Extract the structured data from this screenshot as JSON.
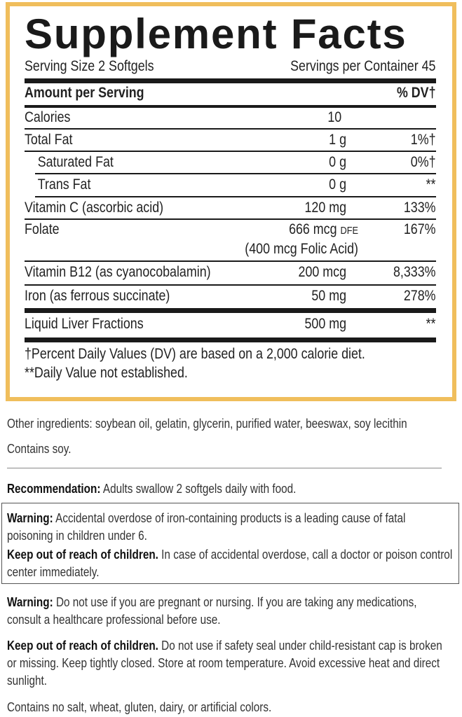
{
  "label": {
    "title": "Supplement Facts",
    "serving_size": "Serving Size 2 Softgels",
    "servings_per_container": "Servings per Container 45",
    "header_amount": "Amount per Serving",
    "header_dv": "% DV†",
    "rows": [
      {
        "name": "Calories",
        "amount": "10",
        "dv": ""
      },
      {
        "name": "Total Fat",
        "amount": "1 g",
        "dv": "1%†"
      },
      {
        "name": "Saturated Fat",
        "amount": "0 g",
        "dv": "0%†"
      },
      {
        "name": "Trans Fat",
        "amount": "0 g",
        "dv": "**"
      },
      {
        "name": "Vitamin C (ascorbic acid)",
        "amount": "120 mg",
        "dv": "133%"
      },
      {
        "name": "Folate",
        "amount": "666 mcg",
        "amount_suffix": "DFE",
        "amount_note": "(400 mcg Folic Acid)",
        "dv": "167%"
      },
      {
        "name": "Vitamin B12 (as cyanocobalamin)",
        "amount": "200 mcg",
        "dv": "8,333%"
      },
      {
        "name": "Iron (as ferrous succinate)",
        "amount": "50 mg",
        "dv": "278%"
      },
      {
        "name": "Liquid Liver Fractions",
        "amount": "500 mg",
        "dv": "**"
      }
    ],
    "footnote1": "†Percent Daily Values (DV) are based on a 2,000 calorie diet.",
    "footnote2": "**Daily Value not established."
  },
  "border_color": "#f0be5c",
  "other_ingredients": "Other ingredients: soybean oil, gelatin, glycerin, purified water, beeswax, soy lecithin",
  "contains": "Contains soy.",
  "recommendation": {
    "label": "Recommendation:",
    "text": " Adults swallow 2 softgels daily with food."
  },
  "warning_box": {
    "warning_label": "Warning:",
    "warning_text": " Accidental overdose of iron-containing products is a leading cause of fatal poisoning in children under 6.",
    "keep_label": "Keep out of reach of children.",
    "keep_text": " In case of accidental overdose, call a doctor or poison control center immediately."
  },
  "warning2": {
    "label": "Warning:",
    "text": " Do not use if you are pregnant or nursing. If you are taking any medications, consult a healthcare professional before use."
  },
  "keep2": {
    "label": "Keep out of reach of children.",
    "text": " Do not use if safety seal under child-resistant cap is broken or missing. Keep tightly closed. Store at room temperature. Avoid excessive heat and direct sunlight."
  },
  "free_from": "Contains no salt, wheat, gluten, dairy, or artificial colors."
}
